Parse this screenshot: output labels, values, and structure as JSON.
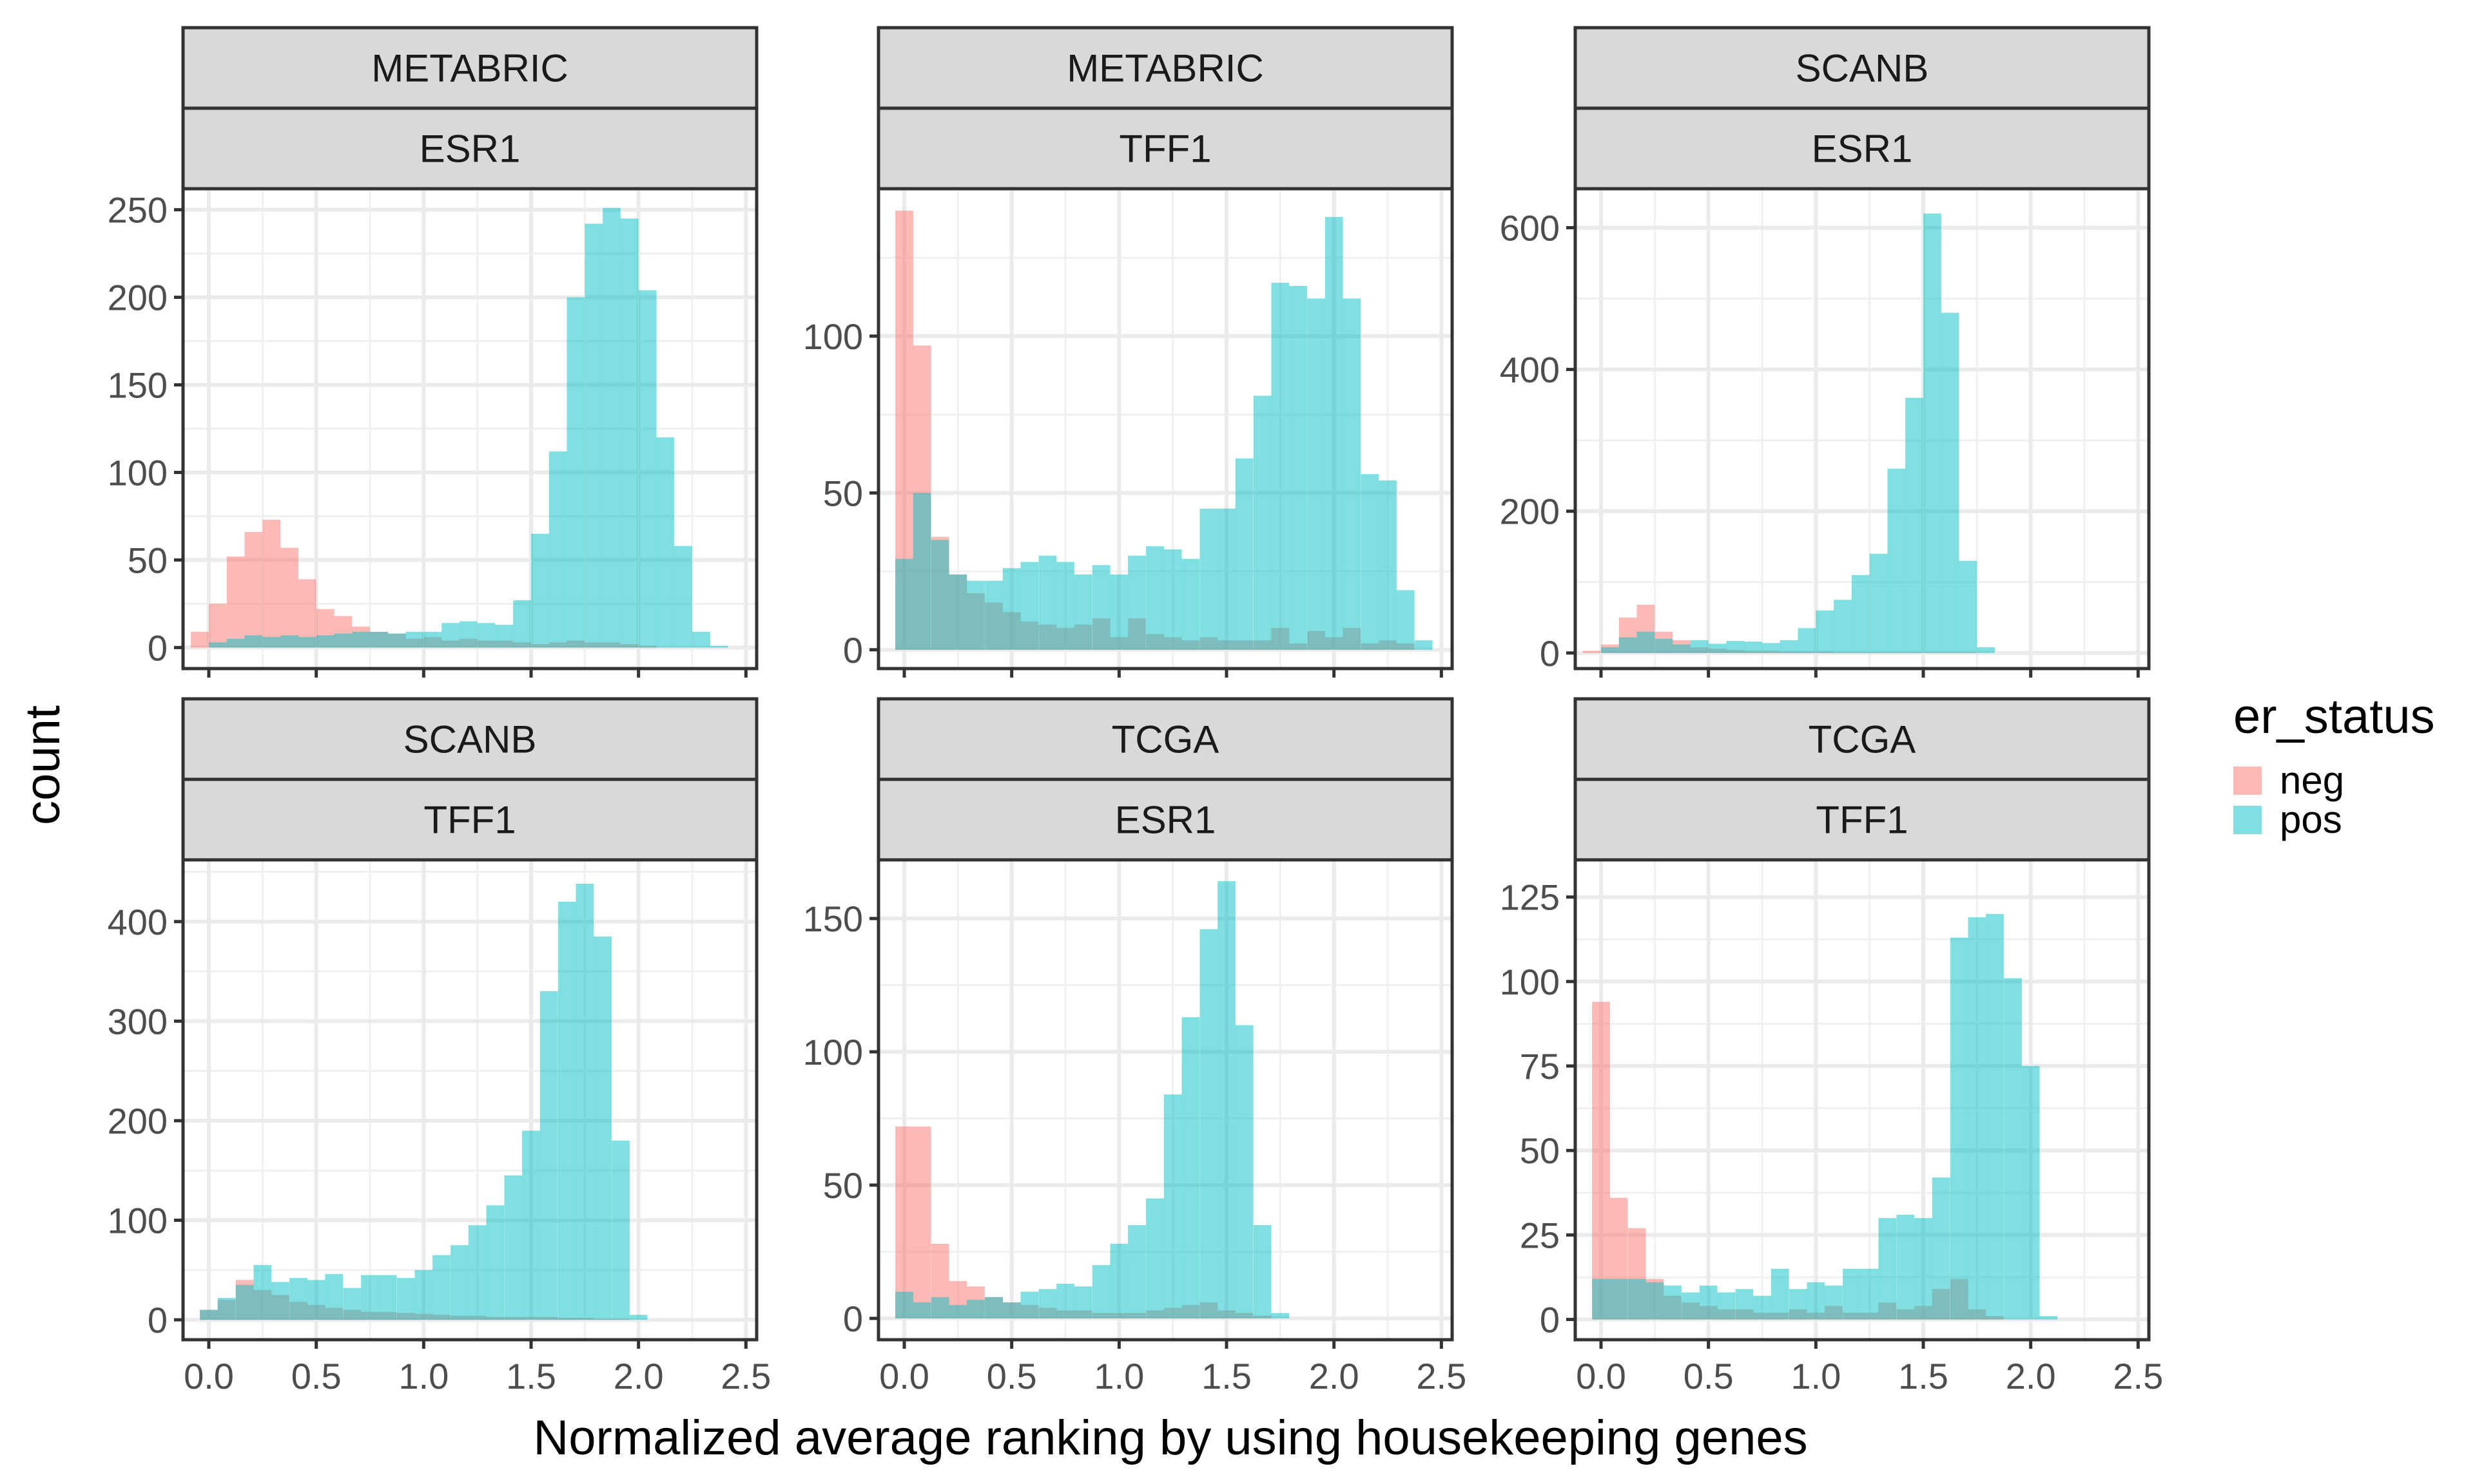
{
  "figure": {
    "xlabel": "Normalized average ranking by using housekeeping genes",
    "ylabel": "count",
    "legend": {
      "title": "er_status",
      "placement": "right",
      "items": [
        {
          "label": "neg",
          "color": "#F8766D"
        },
        {
          "label": "pos",
          "color": "#00BFC4"
        }
      ]
    },
    "bar_opacity": 0.5
  },
  "chart_data": [
    {
      "type": "bar",
      "strip_top": "METABRIC",
      "strip_bottom": "ESR1",
      "bin_width": 0.0833,
      "xlim": [
        -0.12,
        2.55
      ],
      "ylim": [
        -12,
        262
      ],
      "xticks": [
        0.0,
        0.5,
        1.0,
        1.5,
        2.0,
        2.5
      ],
      "xtick_labels": [
        "0.0",
        "0.5",
        "1.0",
        "1.5",
        "2.0",
        "2.5"
      ],
      "yticks": [
        0,
        50,
        100,
        150,
        200,
        250
      ],
      "ytick_labels": [
        "0",
        "50",
        "100",
        "150",
        "200",
        "250"
      ],
      "series": [
        {
          "name": "neg",
          "color": "#F8766D",
          "x": [
            -0.042,
            0.042,
            0.125,
            0.208,
            0.292,
            0.375,
            0.458,
            0.542,
            0.625,
            0.708,
            0.792,
            0.875,
            0.958,
            1.042,
            1.125,
            1.208,
            1.292,
            1.375,
            1.458,
            1.542,
            1.625,
            1.708,
            1.792,
            1.875,
            1.958,
            2.042
          ],
          "values": [
            9,
            25,
            52,
            66,
            73,
            57,
            39,
            22,
            18,
            12,
            9,
            8,
            5,
            6,
            4,
            5,
            4,
            4,
            3,
            2,
            3,
            4,
            3,
            3,
            2,
            1
          ]
        },
        {
          "name": "pos",
          "color": "#00BFC4",
          "x": [
            0.042,
            0.125,
            0.208,
            0.292,
            0.375,
            0.458,
            0.542,
            0.625,
            0.708,
            0.792,
            0.875,
            0.958,
            1.042,
            1.125,
            1.208,
            1.292,
            1.375,
            1.458,
            1.542,
            1.625,
            1.708,
            1.792,
            1.875,
            1.958,
            2.042,
            2.125,
            2.208,
            2.292,
            2.375
          ],
          "values": [
            3,
            5,
            7,
            6,
            7,
            6,
            7,
            8,
            9,
            9,
            8,
            9,
            9,
            14,
            15,
            14,
            13,
            27,
            65,
            112,
            200,
            242,
            251,
            245,
            204,
            120,
            58,
            9,
            1
          ]
        }
      ]
    },
    {
      "type": "bar",
      "strip_top": "METABRIC",
      "strip_bottom": "TFF1",
      "bin_width": 0.0833,
      "xlim": [
        -0.12,
        2.55
      ],
      "ylim": [
        -6,
        147
      ],
      "xticks": [
        0.0,
        0.5,
        1.0,
        1.5,
        2.0,
        2.5
      ],
      "xtick_labels": [
        "0.0",
        "0.5",
        "1.0",
        "1.5",
        "2.0",
        "2.5"
      ],
      "yticks": [
        0,
        50,
        100
      ],
      "ytick_labels": [
        "0",
        "50",
        "100"
      ],
      "series": [
        {
          "name": "neg",
          "color": "#F8766D",
          "x": [
            0.0,
            0.083,
            0.167,
            0.25,
            0.333,
            0.417,
            0.5,
            0.583,
            0.667,
            0.75,
            0.833,
            0.917,
            1.0,
            1.083,
            1.167,
            1.25,
            1.333,
            1.417,
            1.5,
            1.583,
            1.667,
            1.75,
            1.833,
            1.917,
            2.0,
            2.083,
            2.167,
            2.25,
            2.333
          ],
          "values": [
            140,
            97,
            36,
            24,
            18,
            15,
            12,
            9,
            8,
            7,
            8,
            10,
            4,
            10,
            5,
            4,
            3,
            4,
            3,
            3,
            3,
            7,
            2,
            6,
            4,
            7,
            2,
            3,
            2
          ]
        },
        {
          "name": "pos",
          "color": "#00BFC4",
          "x": [
            0.0,
            0.083,
            0.167,
            0.25,
            0.333,
            0.417,
            0.5,
            0.583,
            0.667,
            0.75,
            0.833,
            0.917,
            1.0,
            1.083,
            1.167,
            1.25,
            1.333,
            1.417,
            1.5,
            1.583,
            1.667,
            1.75,
            1.833,
            1.917,
            2.0,
            2.083,
            2.167,
            2.25,
            2.333,
            2.417
          ],
          "values": [
            29,
            50,
            35,
            24,
            22,
            22,
            26,
            28,
            30,
            28,
            24,
            27,
            24,
            30,
            33,
            32,
            29,
            45,
            45,
            61,
            81,
            117,
            116,
            112,
            138,
            112,
            56,
            54,
            19,
            3
          ]
        }
      ]
    },
    {
      "type": "bar",
      "strip_top": "SCANB",
      "strip_bottom": "ESR1",
      "bin_width": 0.0833,
      "xlim": [
        -0.12,
        2.55
      ],
      "ylim": [
        -22,
        655
      ],
      "xticks": [
        0.0,
        0.5,
        1.0,
        1.5,
        2.0,
        2.5
      ],
      "xtick_labels": [
        "0.0",
        "0.5",
        "1.0",
        "1.5",
        "2.0",
        "2.5"
      ],
      "yticks": [
        0,
        200,
        400,
        600
      ],
      "ytick_labels": [
        "0",
        "200",
        "400",
        "600"
      ],
      "series": [
        {
          "name": "neg",
          "color": "#F8766D",
          "x": [
            -0.042,
            0.042,
            0.125,
            0.208,
            0.292,
            0.375,
            0.458,
            0.542,
            0.625,
            0.708,
            0.792,
            0.875,
            0.958,
            1.042,
            1.125,
            1.208,
            1.292,
            1.375,
            1.458,
            1.542,
            1.625,
            1.708
          ],
          "values": [
            3,
            12,
            50,
            68,
            30,
            18,
            8,
            6,
            4,
            3,
            3,
            2,
            2,
            2,
            1,
            1,
            1,
            1,
            1,
            1,
            1,
            1
          ]
        },
        {
          "name": "pos",
          "color": "#00BFC4",
          "x": [
            0.042,
            0.125,
            0.208,
            0.292,
            0.375,
            0.458,
            0.542,
            0.625,
            0.708,
            0.792,
            0.875,
            0.958,
            1.042,
            1.125,
            1.208,
            1.292,
            1.375,
            1.458,
            1.542,
            1.625,
            1.708,
            1.792
          ],
          "values": [
            8,
            22,
            30,
            20,
            12,
            18,
            13,
            17,
            16,
            14,
            18,
            35,
            60,
            75,
            110,
            140,
            260,
            360,
            620,
            480,
            130,
            8
          ]
        }
      ]
    },
    {
      "type": "bar",
      "strip_top": "SCANB",
      "strip_bottom": "TFF1",
      "bin_width": 0.0833,
      "xlim": [
        -0.12,
        2.55
      ],
      "ylim": [
        -20,
        462
      ],
      "xticks": [
        0.0,
        0.5,
        1.0,
        1.5,
        2.0,
        2.5
      ],
      "xtick_labels": [
        "0.0",
        "0.5",
        "1.0",
        "1.5",
        "2.0",
        "2.5"
      ],
      "yticks": [
        0,
        100,
        200,
        300,
        400
      ],
      "ytick_labels": [
        "0",
        "100",
        "200",
        "300",
        "400"
      ],
      "series": [
        {
          "name": "neg",
          "color": "#F8766D",
          "x": [
            0.0,
            0.083,
            0.167,
            0.25,
            0.333,
            0.417,
            0.5,
            0.583,
            0.667,
            0.75,
            0.833,
            0.917,
            1.0,
            1.083,
            1.167,
            1.25,
            1.333,
            1.417,
            1.5,
            1.583,
            1.667,
            1.75,
            1.833,
            1.917
          ],
          "values": [
            10,
            20,
            40,
            30,
            25,
            18,
            15,
            12,
            10,
            8,
            8,
            7,
            6,
            5,
            4,
            4,
            3,
            3,
            3,
            3,
            2,
            2,
            1,
            1
          ]
        },
        {
          "name": "pos",
          "color": "#00BFC4",
          "x": [
            0.0,
            0.083,
            0.167,
            0.25,
            0.333,
            0.417,
            0.5,
            0.583,
            0.667,
            0.75,
            0.833,
            0.917,
            1.0,
            1.083,
            1.167,
            1.25,
            1.333,
            1.417,
            1.5,
            1.583,
            1.667,
            1.75,
            1.833,
            1.917,
            2.0
          ],
          "values": [
            10,
            22,
            35,
            55,
            38,
            42,
            40,
            46,
            32,
            45,
            45,
            42,
            50,
            65,
            75,
            95,
            115,
            145,
            190,
            330,
            420,
            438,
            385,
            180,
            5
          ]
        }
      ]
    },
    {
      "type": "bar",
      "strip_top": "TCGA",
      "strip_bottom": "ESR1",
      "bin_width": 0.0833,
      "xlim": [
        -0.12,
        2.55
      ],
      "ylim": [
        -8,
        172
      ],
      "xticks": [
        0.0,
        0.5,
        1.0,
        1.5,
        2.0,
        2.5
      ],
      "xtick_labels": [
        "0.0",
        "0.5",
        "1.0",
        "1.5",
        "2.0",
        "2.5"
      ],
      "yticks": [
        0,
        50,
        100,
        150
      ],
      "ytick_labels": [
        "0",
        "50",
        "100",
        "150"
      ],
      "series": [
        {
          "name": "neg",
          "color": "#F8766D",
          "x": [
            0.0,
            0.083,
            0.167,
            0.25,
            0.333,
            0.417,
            0.5,
            0.583,
            0.667,
            0.75,
            0.833,
            0.917,
            1.0,
            1.083,
            1.167,
            1.25,
            1.333,
            1.417,
            1.5,
            1.583,
            1.667
          ],
          "values": [
            72,
            72,
            28,
            14,
            12,
            8,
            6,
            5,
            4,
            3,
            3,
            2,
            2,
            2,
            3,
            4,
            5,
            6,
            3,
            2,
            1
          ]
        },
        {
          "name": "pos",
          "color": "#00BFC4",
          "x": [
            0.0,
            0.083,
            0.167,
            0.25,
            0.333,
            0.417,
            0.5,
            0.583,
            0.667,
            0.75,
            0.833,
            0.917,
            1.0,
            1.083,
            1.167,
            1.25,
            1.333,
            1.417,
            1.5,
            1.583,
            1.667,
            1.75
          ],
          "values": [
            10,
            6,
            8,
            5,
            7,
            8,
            6,
            10,
            11,
            13,
            12,
            20,
            28,
            35,
            45,
            84,
            113,
            146,
            164,
            110,
            35,
            2
          ]
        }
      ]
    },
    {
      "type": "bar",
      "strip_top": "TCGA",
      "strip_bottom": "TFF1",
      "bin_width": 0.0833,
      "xlim": [
        -0.12,
        2.55
      ],
      "ylim": [
        -6,
        136
      ],
      "xticks": [
        0.0,
        0.5,
        1.0,
        1.5,
        2.0,
        2.5
      ],
      "xtick_labels": [
        "0.0",
        "0.5",
        "1.0",
        "1.5",
        "2.0",
        "2.5"
      ],
      "yticks": [
        0,
        25,
        50,
        75,
        100,
        125
      ],
      "ytick_labels": [
        "0",
        "25",
        "50",
        "75",
        "100",
        "125"
      ],
      "series": [
        {
          "name": "neg",
          "color": "#F8766D",
          "x": [
            0.0,
            0.083,
            0.167,
            0.25,
            0.333,
            0.417,
            0.5,
            0.583,
            0.667,
            0.75,
            0.833,
            0.917,
            1.0,
            1.083,
            1.167,
            1.25,
            1.333,
            1.417,
            1.5,
            1.583,
            1.667,
            1.75,
            1.833
          ],
          "values": [
            94,
            36,
            27,
            12,
            7,
            5,
            4,
            3,
            3,
            2,
            2,
            3,
            2,
            4,
            2,
            2,
            5,
            3,
            4,
            9,
            12,
            3,
            1
          ]
        },
        {
          "name": "pos",
          "color": "#00BFC4",
          "x": [
            0.0,
            0.083,
            0.167,
            0.25,
            0.333,
            0.417,
            0.5,
            0.583,
            0.667,
            0.75,
            0.833,
            0.917,
            1.0,
            1.083,
            1.167,
            1.25,
            1.333,
            1.417,
            1.5,
            1.583,
            1.667,
            1.75,
            1.833,
            1.917,
            2.0,
            2.083
          ],
          "values": [
            12,
            12,
            12,
            11,
            10,
            8,
            10,
            8,
            9,
            7,
            15,
            9,
            11,
            10,
            15,
            15,
            30,
            31,
            30,
            42,
            113,
            119,
            120,
            101,
            75,
            1
          ]
        }
      ]
    }
  ]
}
